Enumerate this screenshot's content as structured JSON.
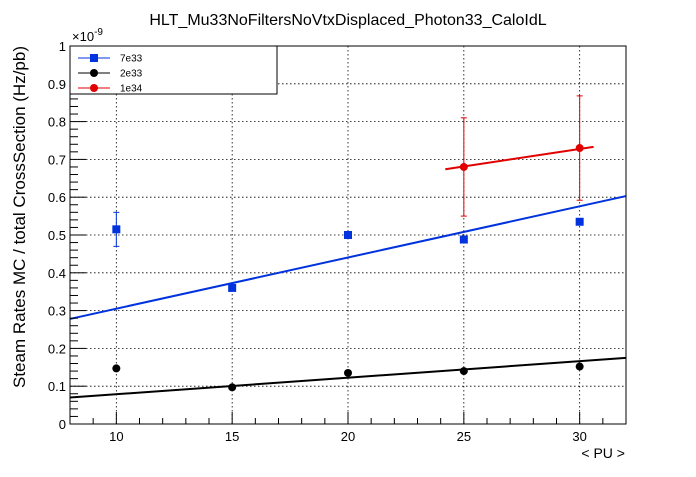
{
  "chart_data": {
    "type": "scatter",
    "title": "HLT_Mu33NoFiltersNoVtxDisplaced_Photon33_CaloIdL",
    "xlabel": "< PU >",
    "ylabel": "Steam Rates MC / total CrossSection (Hz/pb)",
    "y_multiplier": "×10",
    "y_exponent": "-9",
    "xlim": [
      8,
      32
    ],
    "ylim": [
      0,
      1
    ],
    "xticks": [
      10,
      15,
      20,
      25,
      30
    ],
    "yticks": [
      0,
      0.1,
      0.2,
      0.3,
      0.4,
      0.5,
      0.6,
      0.7,
      0.8,
      0.9,
      1
    ],
    "xtick_labels": [
      "10",
      "15",
      "20",
      "25",
      "30"
    ],
    "ytick_labels": [
      "0",
      "0.1",
      "0.2",
      "0.3",
      "0.4",
      "0.5",
      "0.6",
      "0.7",
      "0.8",
      "0.9",
      "1"
    ],
    "grid": true,
    "legend_position": "top-left",
    "series": [
      {
        "name": "7e33",
        "color": "#0033dd",
        "marker": "square",
        "points": [
          {
            "x": 10,
            "y": 0.515,
            "err": 0.045
          },
          {
            "x": 15,
            "y": 0.36,
            "err": 0
          },
          {
            "x": 20,
            "y": 0.5,
            "err": 0
          },
          {
            "x": 25,
            "y": 0.488,
            "err": 0
          },
          {
            "x": 30,
            "y": 0.535,
            "err": 0
          }
        ],
        "fit": {
          "x": [
            8,
            32
          ],
          "y": [
            0.278,
            0.603
          ]
        }
      },
      {
        "name": "2e33",
        "color": "#000000",
        "marker": "circle",
        "points": [
          {
            "x": 10,
            "y": 0.147,
            "err": 0
          },
          {
            "x": 15,
            "y": 0.097,
            "err": 0
          },
          {
            "x": 20,
            "y": 0.135,
            "err": 0
          },
          {
            "x": 25,
            "y": 0.14,
            "err": 0
          },
          {
            "x": 30,
            "y": 0.152,
            "err": 0
          }
        ],
        "fit": {
          "x": [
            8,
            32
          ],
          "y": [
            0.07,
            0.175
          ]
        }
      },
      {
        "name": "1e34",
        "color": "#e00000",
        "marker": "circle",
        "points": [
          {
            "x": 25,
            "y": 0.68,
            "err": 0.13
          },
          {
            "x": 30,
            "y": 0.73,
            "err": 0.138
          }
        ],
        "fit": {
          "x": [
            24.2,
            30.6
          ],
          "y": [
            0.674,
            0.733
          ]
        }
      }
    ]
  }
}
